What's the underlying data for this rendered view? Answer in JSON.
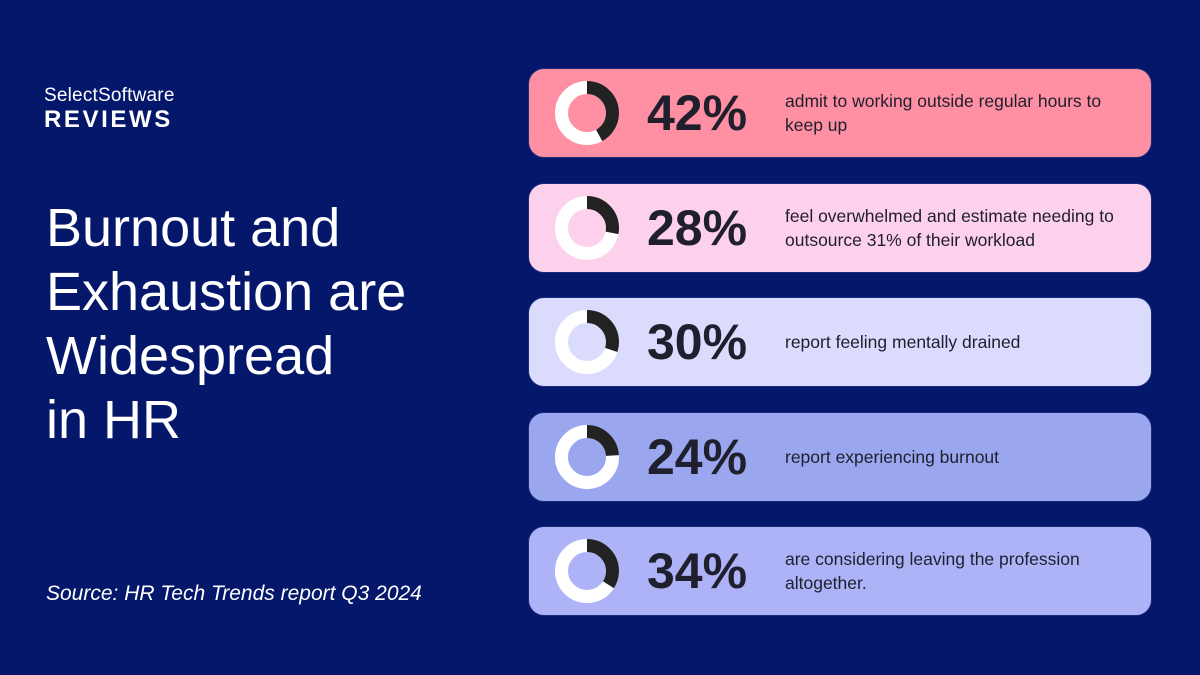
{
  "brand": {
    "line1": "SelectSoftware",
    "line2": "REVIEWS"
  },
  "title_lines": [
    "Burnout and",
    "Exhaustion are",
    "Widespread",
    "in HR"
  ],
  "source": "Source: HR Tech Trends report Q3 2024",
  "chart_data": {
    "type": "pie",
    "items": [
      {
        "value": 42,
        "label": "42%",
        "description": "admit to working outside regular hours to keep up",
        "color": "#ff8fa3"
      },
      {
        "value": 28,
        "label": "28%",
        "description": "feel overwhelmed and estimate needing to outsource 31% of their workload",
        "color": "#fdd0eb"
      },
      {
        "value": 30,
        "label": "30%",
        "description": "report feeling mentally drained",
        "color": "#dadbfd"
      },
      {
        "value": 24,
        "label": "24%",
        "description": "report experiencing burnout",
        "color": "#9aa6ee"
      },
      {
        "value": 34,
        "label": "34%",
        "description": "are considering leaving the profession altogether.",
        "color": "#aeb3f8"
      }
    ],
    "ring_color": "#ffffff",
    "fill_color": "#222222"
  }
}
